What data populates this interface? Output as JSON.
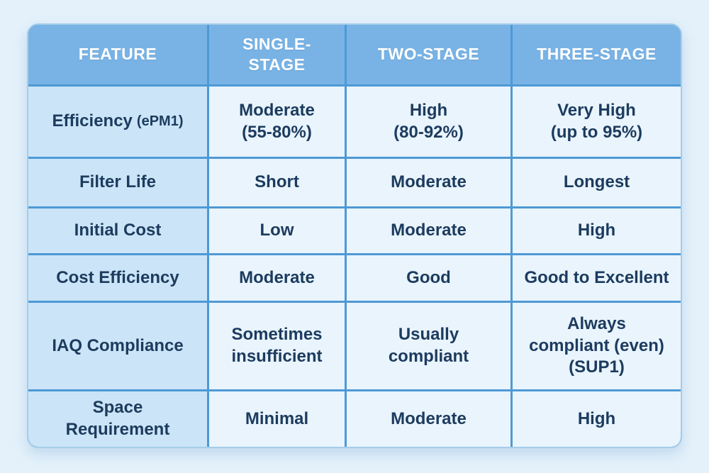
{
  "colors": {
    "page_background": "#e4f1fb",
    "header_background": "#79b3e5",
    "header_text": "#ffffff",
    "feature_cell_background": "#cbe4f7",
    "value_cell_background": "#e9f4fd",
    "grid_line": "#4e99d5",
    "body_text": "#1c3b5e"
  },
  "table": {
    "headers": [
      "FEATURE",
      "SINGLE-STAGE",
      "TWO-STAGE",
      "THREE-STAGE"
    ],
    "rows": [
      {
        "feature": "Efficiency",
        "feature_note": "(ePM1)",
        "single": "Moderate\n(55-80%)",
        "two": "High\n(80-92%)",
        "three": "Very High\n(up to 95%)"
      },
      {
        "feature": "Filter Life",
        "single": "Short",
        "two": "Moderate",
        "three": "Longest"
      },
      {
        "feature": "Initial Cost",
        "single": "Low",
        "two": "Moderate",
        "three": "High"
      },
      {
        "feature": "Cost Efficiency",
        "single": "Moderate",
        "two": "Good",
        "three": "Good to Excellent"
      },
      {
        "feature": "IAQ Compliance",
        "single": "Sometimes\ninsufficient",
        "two": "Usually\ncompliant",
        "three": "Always\ncompliant (even)\n(SUP1)"
      },
      {
        "feature": "Space\nRequirement",
        "single": "Minimal",
        "two": "Moderate",
        "three": "High"
      }
    ]
  },
  "chart_data": {
    "type": "table",
    "title": "",
    "columns": [
      "FEATURE",
      "SINGLE-STAGE",
      "TWO-STAGE",
      "THREE-STAGE"
    ],
    "cells": [
      [
        "Efficiency (ePM1)",
        "Moderate (55-80%)",
        "High (80-92%)",
        "Very High (up to 95%)"
      ],
      [
        "Filter Life",
        "Short",
        "Moderate",
        "Longest"
      ],
      [
        "Initial Cost",
        "Low",
        "Moderate",
        "High"
      ],
      [
        "Cost Efficiency",
        "Moderate",
        "Good",
        "Good to Excellent"
      ],
      [
        "IAQ Compliance",
        "Sometimes insufficient",
        "Usually compliant",
        "Always compliant (even) (SUP1)"
      ],
      [
        "Space Requirement",
        "Minimal",
        "Moderate",
        "High"
      ]
    ]
  }
}
